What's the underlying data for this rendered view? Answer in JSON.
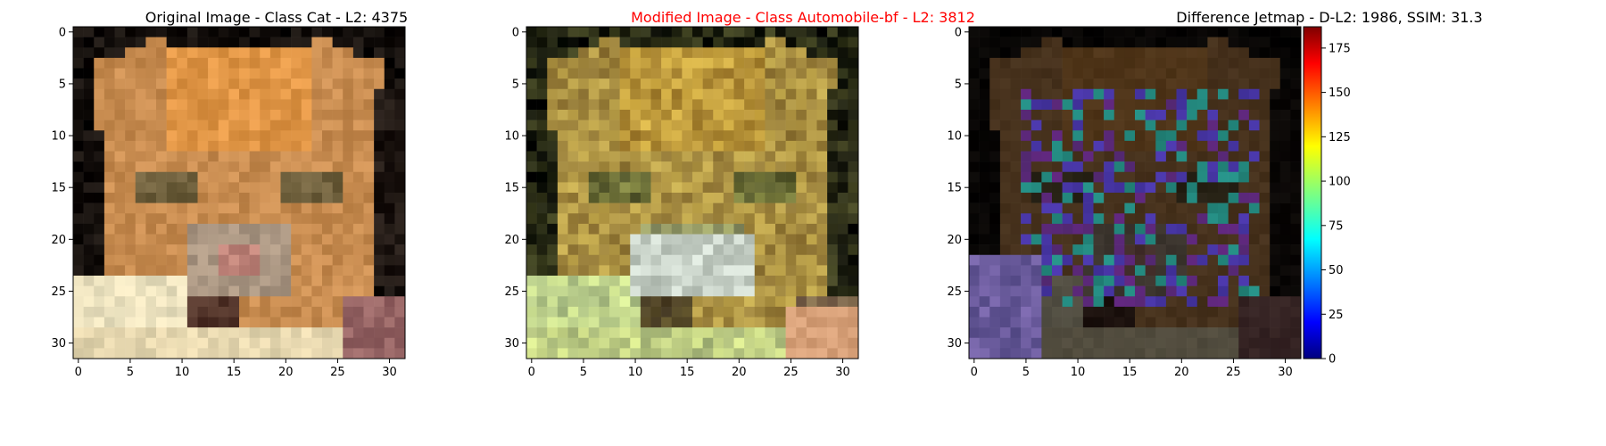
{
  "chart_data": [
    {
      "type": "heatmap",
      "title": "Original Image - Class Cat - L2: 4375",
      "title_color": "#000000",
      "image_size": [
        32,
        32
      ],
      "xticks": [
        0,
        5,
        10,
        15,
        20,
        25,
        30
      ],
      "yticks": [
        0,
        5,
        10,
        15,
        20,
        25,
        30
      ],
      "xlim": [
        -0.5,
        31.5
      ],
      "ylim": [
        31.5,
        -0.5
      ],
      "content": "pixelated photo of an orange tabby cat face"
    },
    {
      "type": "heatmap",
      "title": "Modified Image - Class Automobile-bf - L2: 3812",
      "title_color": "#ff0000",
      "image_size": [
        32,
        32
      ],
      "xticks": [
        0,
        5,
        10,
        15,
        20,
        25,
        30
      ],
      "yticks": [
        0,
        5,
        10,
        15,
        20,
        25,
        30
      ],
      "xlim": [
        -0.5,
        31.5
      ],
      "ylim": [
        31.5,
        -0.5
      ],
      "content": "adversarially perturbed version of the cat image"
    },
    {
      "type": "heatmap",
      "title": "Difference Jetmap - D-L2: 1986, SSIM: 31.3",
      "title_color": "#000000",
      "image_size": [
        32,
        32
      ],
      "xticks": [
        0,
        5,
        10,
        15,
        20,
        25,
        30
      ],
      "yticks": [
        0,
        5,
        10,
        15,
        20,
        25,
        30
      ],
      "xlim": [
        -0.5,
        31.5
      ],
      "ylim": [
        31.5,
        -0.5
      ],
      "colorbar": {
        "colormap": "jet",
        "range": [
          0,
          187
        ],
        "ticks": [
          0,
          25,
          50,
          75,
          100,
          125,
          150,
          175
        ]
      },
      "content": "dark difference map with cat outline visible"
    }
  ]
}
